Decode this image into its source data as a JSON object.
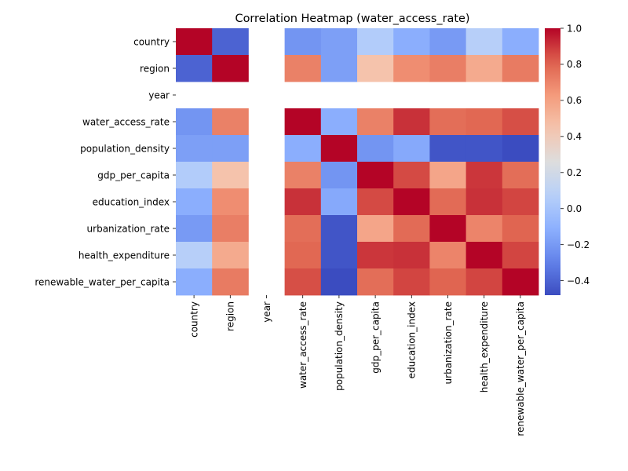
{
  "chart_data": {
    "type": "heatmap",
    "title": "Correlation Heatmap (water_access_rate)",
    "rows": [
      "country",
      "region",
      "year",
      "water_access_rate",
      "population_density",
      "gdp_per_capita",
      "education_index",
      "urbanization_rate",
      "health_expenditure",
      "renewable_water_per_capita"
    ],
    "columns": [
      "country",
      "region",
      "year",
      "water_access_rate",
      "population_density",
      "gdp_per_capita",
      "education_index",
      "urbanization_rate",
      "health_expenditure",
      "renewable_water_per_capita"
    ],
    "values": [
      [
        1.0,
        -0.4,
        null,
        -0.22,
        -0.18,
        0.05,
        -0.12,
        -0.2,
        0.07,
        -0.12
      ],
      [
        -0.4,
        1.0,
        null,
        0.71,
        -0.18,
        0.45,
        0.67,
        0.72,
        0.56,
        0.73
      ],
      [
        null,
        null,
        null,
        null,
        null,
        null,
        null,
        null,
        null,
        null
      ],
      [
        -0.22,
        0.71,
        null,
        1.0,
        -0.12,
        0.71,
        0.91,
        0.77,
        0.79,
        0.85
      ],
      [
        -0.18,
        -0.18,
        null,
        -0.12,
        1.0,
        -0.22,
        -0.14,
        -0.45,
        -0.45,
        -0.5
      ],
      [
        0.05,
        0.45,
        null,
        0.71,
        -0.22,
        1.0,
        0.86,
        0.58,
        0.9,
        0.77
      ],
      [
        -0.12,
        0.67,
        null,
        0.91,
        -0.14,
        0.86,
        1.0,
        0.78,
        0.91,
        0.87
      ],
      [
        -0.2,
        0.72,
        null,
        0.77,
        -0.45,
        0.58,
        0.78,
        1.0,
        0.7,
        0.8
      ],
      [
        0.07,
        0.56,
        null,
        0.79,
        -0.45,
        0.9,
        0.91,
        0.7,
        1.0,
        0.87
      ],
      [
        -0.12,
        0.73,
        null,
        0.85,
        -0.5,
        0.77,
        0.87,
        0.8,
        0.87,
        1.0
      ]
    ],
    "colorbar": {
      "colormap": "coolwarm",
      "vmin": -0.48,
      "vmax": 1.0,
      "ticks": [
        -0.4,
        -0.2,
        0.0,
        0.2,
        0.4,
        0.6,
        0.8,
        1.0
      ],
      "tick_labels": [
        "−0.4",
        "−0.2",
        "0.0",
        "0.2",
        "0.4",
        "0.6",
        "0.8",
        "1.0"
      ]
    }
  }
}
